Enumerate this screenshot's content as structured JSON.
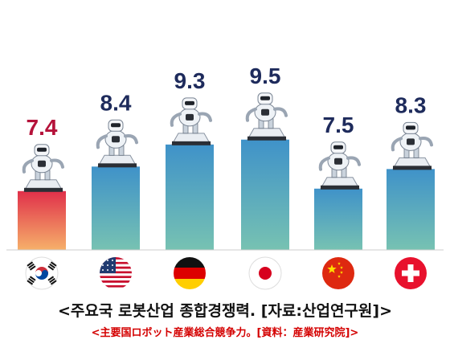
{
  "chart_data": {
    "type": "bar",
    "title": "<주요국 로봇산업 종합경쟁력. [자료:산업연구원]>",
    "subtitle": "<主要国ロボット産業総合競争力。[資料：産業研究院]>",
    "categories": [
      "South Korea",
      "United States",
      "Germany",
      "Japan",
      "China",
      "Switzerland"
    ],
    "category_icons": [
      "korea-flag-icon",
      "usa-flag-icon",
      "germany-flag-icon",
      "japan-flag-icon",
      "china-flag-icon",
      "switzerland-flag-icon"
    ],
    "values": [
      7.4,
      8.4,
      9.3,
      9.5,
      7.5,
      8.3
    ],
    "value_labels": [
      "7.4",
      "8.4",
      "9.3",
      "9.5",
      "7.5",
      "8.3"
    ],
    "ylim": [
      0,
      10
    ],
    "grid": false,
    "colors": {
      "highlight_top": "#e0304a",
      "highlight_bottom": "#f6b06a",
      "bar_top": "#3f92c9",
      "bar_bottom": "#77c2b2",
      "highlight_label": "#b5123a",
      "label": "#1e2b5c"
    },
    "bar_decoration": "robot-icon"
  }
}
